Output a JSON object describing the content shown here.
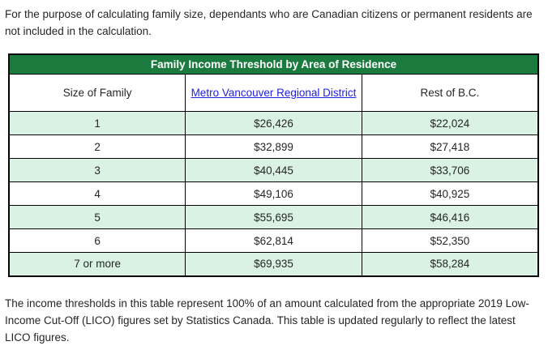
{
  "intro": {
    "text": "For the purpose of calculating family size, dependants who are Canadian citizens or permanent residents are not included in the calculation."
  },
  "table": {
    "title": "Family Income Threshold by Area of Residence",
    "columns": {
      "size": "Size of Family",
      "metro": "Metro Vancouver Regional District",
      "rest": "Rest of B.C."
    },
    "rows": [
      {
        "size": "1",
        "metro": "$26,426",
        "rest": "$22,024"
      },
      {
        "size": "2",
        "metro": "$32,899",
        "rest": "$27,418"
      },
      {
        "size": "3",
        "metro": "$40,445",
        "rest": "$33,706"
      },
      {
        "size": "4",
        "metro": "$49,106",
        "rest": "$40,925"
      },
      {
        "size": "5",
        "metro": "$55,695",
        "rest": "$46,416"
      },
      {
        "size": "6",
        "metro": "$62,814",
        "rest": "$52,350"
      },
      {
        "size": "7 or more",
        "metro": "$69,935",
        "rest": "$58,284"
      }
    ]
  },
  "footer": {
    "text": "The income thresholds in this table represent 100% of an amount calculated from the appropriate 2019 Low-Income Cut-Off (LICO) figures set by Statistics Canada. This table is updated regularly to reflect the latest LICO figures."
  },
  "colors": {
    "header_green": "#1b7a3e",
    "stripe_green": "#d9f2e4",
    "link_blue": "#2222e1",
    "border_black": "#000000",
    "text": "#262626"
  }
}
